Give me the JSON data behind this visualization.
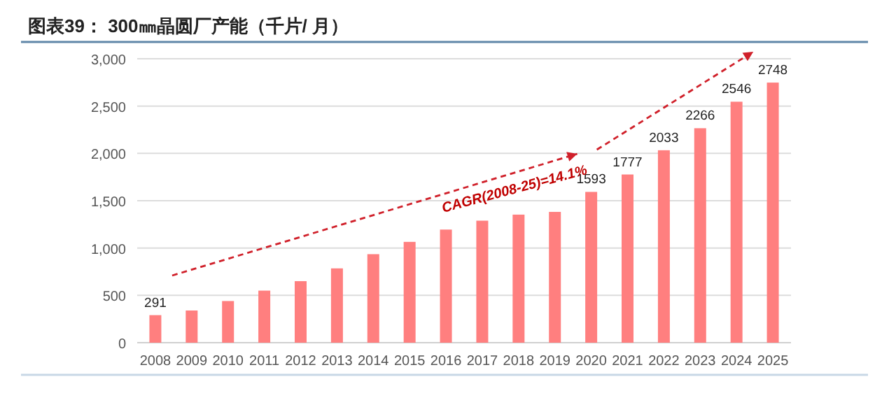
{
  "chart_data": {
    "type": "bar",
    "title": "图表39： 300㎜晶圆厂产能（千片/ 月）",
    "categories": [
      "2008",
      "2009",
      "2010",
      "2011",
      "2012",
      "2013",
      "2014",
      "2015",
      "2016",
      "2017",
      "2018",
      "2019",
      "2020",
      "2021",
      "2022",
      "2023",
      "2024",
      "2025"
    ],
    "values": [
      291,
      340,
      440,
      550,
      650,
      785,
      935,
      1065,
      1195,
      1289,
      1353,
      1382,
      1593,
      1777,
      2033,
      2266,
      2546,
      2748
    ],
    "value_labels": [
      "291",
      null,
      null,
      null,
      null,
      null,
      null,
      null,
      null,
      null,
      null,
      null,
      "1593",
      "1777",
      "2033",
      "2266",
      "2546",
      "2748"
    ],
    "color": "#ff7f7f",
    "ylim": [
      0,
      3000
    ],
    "yticks": [
      {
        "value": 0,
        "label": "0"
      },
      {
        "value": 500,
        "label": "500"
      },
      {
        "value": 1000,
        "label": "1,000"
      },
      {
        "value": 1500,
        "label": "1,500"
      },
      {
        "value": 2000,
        "label": "2,000"
      },
      {
        "value": 2500,
        "label": "2,500"
      },
      {
        "value": 3000,
        "label": "3,000"
      }
    ],
    "grid": "y",
    "annotations": [
      "CAGR(2008-25)=14.1%"
    ]
  }
}
